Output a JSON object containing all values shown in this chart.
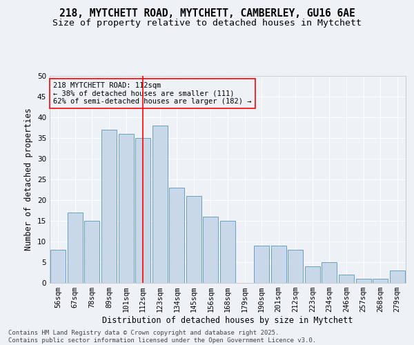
{
  "title": "218, MYTCHETT ROAD, MYTCHETT, CAMBERLEY, GU16 6AE",
  "subtitle": "Size of property relative to detached houses in Mytchett",
  "xlabel": "Distribution of detached houses by size in Mytchett",
  "ylabel": "Number of detached properties",
  "categories": [
    "56sqm",
    "67sqm",
    "78sqm",
    "89sqm",
    "101sqm",
    "112sqm",
    "123sqm",
    "134sqm",
    "145sqm",
    "156sqm",
    "168sqm",
    "179sqm",
    "190sqm",
    "201sqm",
    "212sqm",
    "223sqm",
    "234sqm",
    "246sqm",
    "257sqm",
    "268sqm",
    "279sqm"
  ],
  "values": [
    8,
    17,
    15,
    37,
    36,
    35,
    38,
    23,
    21,
    16,
    15,
    0,
    9,
    9,
    8,
    4,
    5,
    2,
    1,
    1,
    3
  ],
  "bar_color": "#c8d8e8",
  "bar_edge_color": "#6a9fc0",
  "red_line_index": 5,
  "annotation_line1": "218 MYTCHETT ROAD: 112sqm",
  "annotation_line2": "← 38% of detached houses are smaller (111)",
  "annotation_line3": "62% of semi-detached houses are larger (182) →",
  "ylim": [
    0,
    50
  ],
  "yticks": [
    0,
    5,
    10,
    15,
    20,
    25,
    30,
    35,
    40,
    45,
    50
  ],
  "background_color": "#eef2f7",
  "grid_color": "#ffffff",
  "footer": "Contains HM Land Registry data © Crown copyright and database right 2025.\nContains public sector information licensed under the Open Government Licence v3.0.",
  "title_fontsize": 10.5,
  "subtitle_fontsize": 9.5,
  "axis_label_fontsize": 8.5,
  "tick_fontsize": 7.5,
  "annotation_fontsize": 7.5,
  "footer_fontsize": 6.5
}
